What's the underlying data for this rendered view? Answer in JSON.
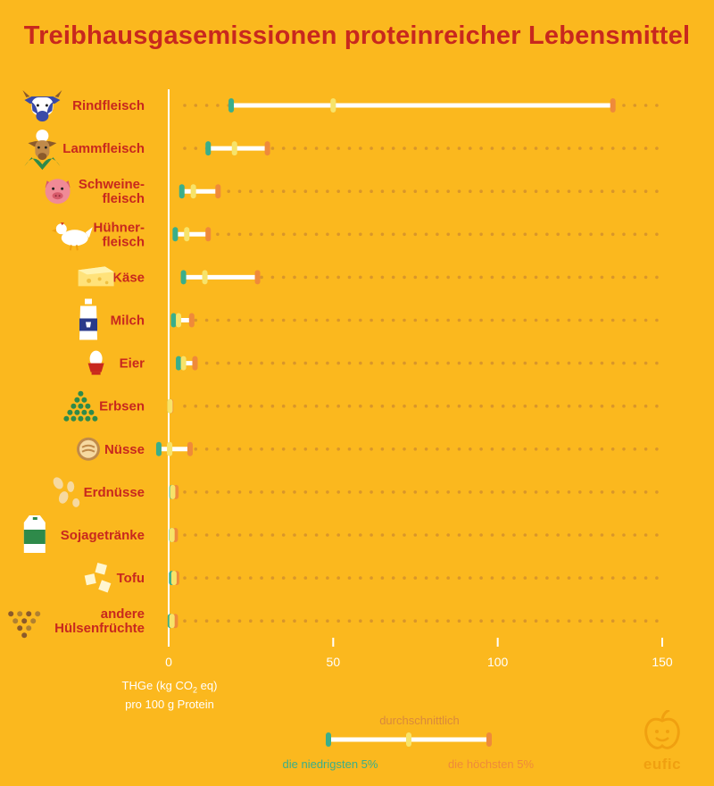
{
  "title": "Treibhausgasemissionen proteinreicher Lebensmittel",
  "chart_data": {
    "type": "range",
    "title": "Treibhausgasemissionen proteinreicher Lebensmittel",
    "xlabel_line1": "THGe (kg CO",
    "xlabel_sub": "2",
    "xlabel_line1_end": " eq)",
    "xlabel_line2": "pro 100 g Protein",
    "xlim": [
      0,
      150
    ],
    "ticks": [
      0,
      50,
      100,
      150
    ],
    "categories": [
      {
        "label": [
          "Rindfleisch"
        ],
        "icon": "cow-icon",
        "low": 19,
        "avg": 50,
        "high": 135
      },
      {
        "label": [
          "Lammfleisch"
        ],
        "icon": "sheep-icon",
        "low": 12,
        "avg": 20,
        "high": 30
      },
      {
        "label": [
          "Schweine-",
          "fleisch"
        ],
        "icon": "pig-icon",
        "low": 4,
        "avg": 7.5,
        "high": 15
      },
      {
        "label": [
          "Hühner-",
          "fleisch"
        ],
        "icon": "chicken-icon",
        "low": 2,
        "avg": 5.5,
        "high": 12
      },
      {
        "label": [
          "Käse"
        ],
        "icon": "cheese-icon",
        "low": 4.5,
        "avg": 11,
        "high": 27
      },
      {
        "label": [
          "Milch"
        ],
        "icon": "milk-bottle-icon",
        "low": 1.5,
        "avg": 3,
        "high": 7
      },
      {
        "label": [
          "Eier"
        ],
        "icon": "egg-icon",
        "low": 3,
        "avg": 4.5,
        "high": 8
      },
      {
        "label": [
          "Erbsen"
        ],
        "icon": "peas-icon",
        "low": 0.4,
        "avg": 0.4,
        "high": 0.6
      },
      {
        "label": [
          "Nüsse"
        ],
        "icon": "nuts-icon",
        "low": -3,
        "avg": 0.3,
        "high": 6.5
      },
      {
        "label": [
          "Erdnüsse"
        ],
        "icon": "peanuts-icon",
        "low": 1,
        "avg": 1.2,
        "high": 2.2
      },
      {
        "label": [
          "Sojagetränke"
        ],
        "icon": "soy-drink-icon",
        "low": 0.9,
        "avg": 1,
        "high": 2
      },
      {
        "label": [
          "Tofu"
        ],
        "icon": "tofu-icon",
        "low": 0.9,
        "avg": 1.6,
        "high": 2.4
      },
      {
        "label": [
          "andere",
          "Hülsenfrüchte"
        ],
        "icon": "legumes-icon",
        "low": 0.5,
        "avg": 1,
        "high": 2
      }
    ]
  },
  "legend": {
    "avg": "durchschnittlich",
    "low": "die niedrigsten 5%",
    "high": "die höchsten 5%"
  },
  "brand": "eufic",
  "colors": {
    "background": "#FBB81E",
    "title": "#C8281E",
    "low": "#3AAE8A",
    "avg": "#F7E36A",
    "high": "#EF8A3A",
    "bar": "#FFFFFF",
    "dots": "#D9962A"
  }
}
